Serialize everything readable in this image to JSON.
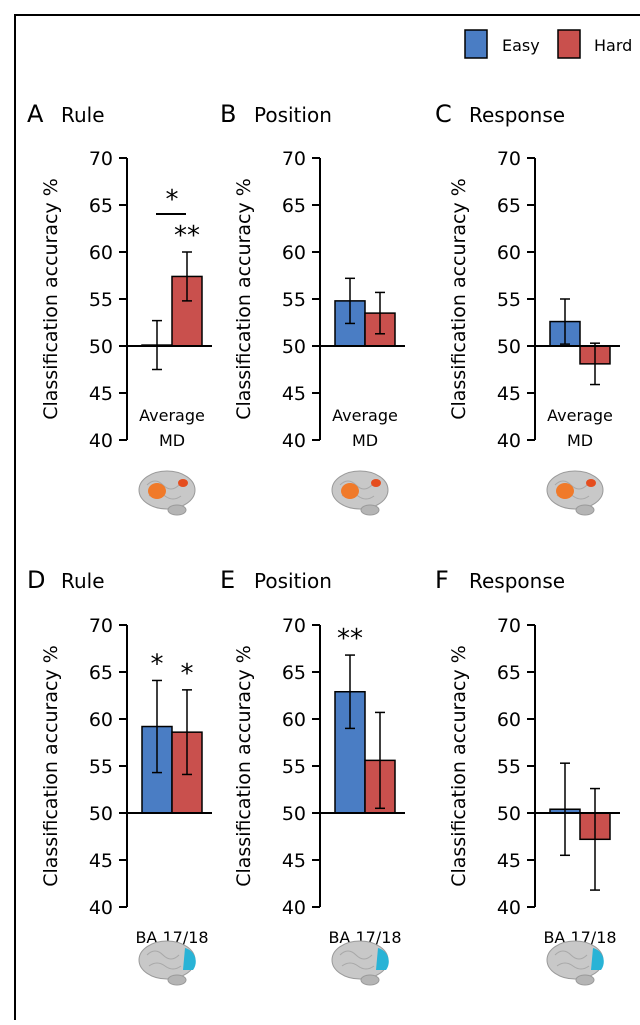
{
  "legend": [
    {
      "label": "Easy",
      "color": "#4a7dc4"
    },
    {
      "label": "Hard",
      "color": "#c9504d"
    }
  ],
  "colors": {
    "easy": "#4a7dc4",
    "hard": "#c9504d",
    "brain_md": "#f07a2a",
    "brain_ba": "#29b3d6",
    "brain": "#c8c8c8"
  },
  "chart_data": [
    {
      "type": "bar",
      "letter": "A",
      "title": "Rule",
      "ylabel": "Classification accuracy %",
      "xlabel": "Average\nMD",
      "ylim": [
        40,
        70
      ],
      "baseline": 50,
      "yticks": [
        40,
        45,
        50,
        55,
        60,
        65,
        70
      ],
      "brain": "md",
      "significance": "**",
      "pair_significance": "*",
      "series": [
        {
          "name": "Easy",
          "values": [
            50.1
          ],
          "error": [
            2.6
          ],
          "significance": ""
        },
        {
          "name": "Hard",
          "values": [
            57.4
          ],
          "error": [
            2.6
          ],
          "significance": "**"
        }
      ]
    },
    {
      "type": "bar",
      "letter": "B",
      "title": "Position",
      "ylabel": "Classification accuracy %",
      "xlabel": "Average\nMD",
      "ylim": [
        40,
        70
      ],
      "baseline": 50,
      "yticks": [
        40,
        45,
        50,
        55,
        60,
        65,
        70
      ],
      "brain": "md",
      "pair_significance": "",
      "series": [
        {
          "name": "Easy",
          "values": [
            54.8
          ],
          "error": [
            2.4
          ],
          "significance": ""
        },
        {
          "name": "Hard",
          "values": [
            53.5
          ],
          "error": [
            2.2
          ],
          "significance": ""
        }
      ]
    },
    {
      "type": "bar",
      "letter": "C",
      "title": "Response",
      "ylabel": "Classification accuracy %",
      "xlabel": "Average\nMD",
      "ylim": [
        40,
        70
      ],
      "baseline": 50,
      "yticks": [
        40,
        45,
        50,
        55,
        60,
        65,
        70
      ],
      "brain": "md",
      "pair_significance": "",
      "series": [
        {
          "name": "Easy",
          "values": [
            52.6
          ],
          "error": [
            2.4
          ],
          "significance": ""
        },
        {
          "name": "Hard",
          "values": [
            48.1
          ],
          "error": [
            2.2
          ],
          "significance": ""
        }
      ]
    },
    {
      "type": "bar",
      "letter": "D",
      "title": "Rule",
      "ylabel": "Classification accuracy %",
      "xlabel": "BA 17/18",
      "ylim": [
        40,
        70
      ],
      "baseline": 50,
      "yticks": [
        40,
        45,
        50,
        55,
        60,
        65,
        70
      ],
      "brain": "ba",
      "pair_significance": "",
      "series": [
        {
          "name": "Easy",
          "values": [
            59.2
          ],
          "error": [
            4.9
          ],
          "significance": "*"
        },
        {
          "name": "Hard",
          "values": [
            58.6
          ],
          "error": [
            4.5
          ],
          "significance": "*"
        }
      ]
    },
    {
      "type": "bar",
      "letter": "E",
      "title": "Position",
      "ylabel": "Classification accuracy %",
      "xlabel": "BA 17/18",
      "ylim": [
        40,
        70
      ],
      "baseline": 50,
      "yticks": [
        40,
        45,
        50,
        55,
        60,
        65,
        70
      ],
      "brain": "ba",
      "pair_significance": "",
      "series": [
        {
          "name": "Easy",
          "values": [
            62.9
          ],
          "error": [
            3.9
          ],
          "significance": "**"
        },
        {
          "name": "Hard",
          "values": [
            55.6
          ],
          "error": [
            5.1
          ],
          "significance": ""
        }
      ]
    },
    {
      "type": "bar",
      "letter": "F",
      "title": "Response",
      "ylabel": "Classification accuracy %",
      "xlabel": "BA 17/18",
      "ylim": [
        40,
        70
      ],
      "baseline": 50,
      "yticks": [
        40,
        45,
        50,
        55,
        60,
        65,
        70
      ],
      "brain": "ba",
      "pair_significance": "",
      "series": [
        {
          "name": "Easy",
          "values": [
            50.4
          ],
          "error": [
            4.9
          ],
          "significance": ""
        },
        {
          "name": "Hard",
          "values": [
            47.2
          ],
          "error": [
            5.4
          ],
          "significance": ""
        }
      ]
    }
  ]
}
